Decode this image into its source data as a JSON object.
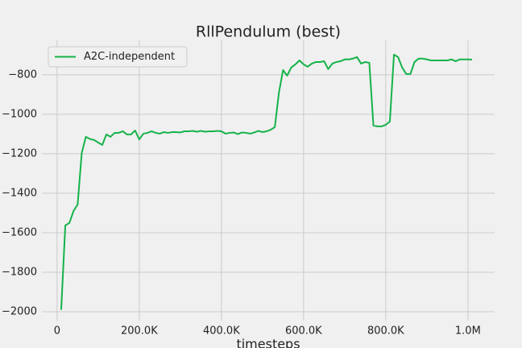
{
  "chart_data": {
    "type": "line",
    "title": "RllPendulum (best)",
    "xlabel": "timesteps",
    "x": [
      10000,
      20000,
      30000,
      40000,
      50000,
      60000,
      70000,
      80000,
      90000,
      100000,
      110000,
      120000,
      130000,
      140000,
      150000,
      160000,
      170000,
      180000,
      190000,
      200000,
      210000,
      220000,
      230000,
      240000,
      250000,
      260000,
      270000,
      280000,
      290000,
      300000,
      310000,
      320000,
      330000,
      340000,
      350000,
      360000,
      370000,
      380000,
      390000,
      400000,
      410000,
      420000,
      430000,
      440000,
      450000,
      460000,
      470000,
      480000,
      490000,
      500000,
      510000,
      520000,
      530000,
      540000,
      550000,
      560000,
      570000,
      580000,
      590000,
      600000,
      610000,
      620000,
      630000,
      640000,
      650000,
      660000,
      670000,
      680000,
      690000,
      700000,
      710000,
      720000,
      730000,
      740000,
      750000,
      760000,
      770000,
      780000,
      790000,
      800000,
      810000,
      820000,
      830000,
      840000,
      850000,
      860000,
      870000,
      880000,
      890000,
      900000,
      910000,
      920000,
      930000,
      940000,
      950000,
      960000,
      970000,
      980000,
      990000,
      1000000,
      1010000
    ],
    "series": [
      {
        "name": "A2C-independent",
        "color": "#15b34a",
        "values": [
          -1990,
          -1563,
          -1550,
          -1490,
          -1457,
          -1196,
          -1114,
          -1125,
          -1130,
          -1143,
          -1155,
          -1102,
          -1114,
          -1094,
          -1094,
          -1086,
          -1102,
          -1102,
          -1082,
          -1127,
          -1098,
          -1094,
          -1086,
          -1094,
          -1098,
          -1090,
          -1094,
          -1090,
          -1090,
          -1092,
          -1086,
          -1086,
          -1084,
          -1088,
          -1084,
          -1088,
          -1086,
          -1086,
          -1084,
          -1086,
          -1098,
          -1094,
          -1092,
          -1100,
          -1092,
          -1094,
          -1098,
          -1092,
          -1084,
          -1090,
          -1086,
          -1078,
          -1065,
          -890,
          -776,
          -804,
          -763,
          -747,
          -727,
          -747,
          -759,
          -743,
          -735,
          -735,
          -731,
          -771,
          -743,
          -735,
          -731,
          -722,
          -722,
          -718,
          -710,
          -743,
          -735,
          -739,
          -1057,
          -1061,
          -1061,
          -1053,
          -1037,
          -698,
          -710,
          -763,
          -796,
          -796,
          -735,
          -718,
          -718,
          -722,
          -727,
          -727,
          -727,
          -727,
          -727,
          -722,
          -731,
          -722,
          -722,
          -722,
          -723
        ]
      }
    ],
    "xlim": [
      -37000,
      1065000
    ],
    "ylim": [
      -2045,
      -625
    ],
    "xticks": [
      0,
      {
        "value": 200000,
        "label": "200.0K"
      },
      {
        "value": 400000,
        "label": "400.0K"
      },
      {
        "value": 600000,
        "label": "600.0K"
      },
      {
        "value": 800000,
        "label": "800.0K"
      },
      {
        "value": 1000000,
        "label": "1.0M"
      }
    ],
    "yticks": [
      {
        "value": -2000,
        "label": "−2000"
      },
      {
        "value": -1800,
        "label": "−1800"
      },
      {
        "value": -1600,
        "label": "−1600"
      },
      {
        "value": -1400,
        "label": "−1400"
      },
      {
        "value": -1200,
        "label": "−1200"
      },
      {
        "value": -1000,
        "label": "−1000"
      },
      {
        "value": -800,
        "label": "−800"
      }
    ],
    "grid": true,
    "legend": "upper left"
  }
}
